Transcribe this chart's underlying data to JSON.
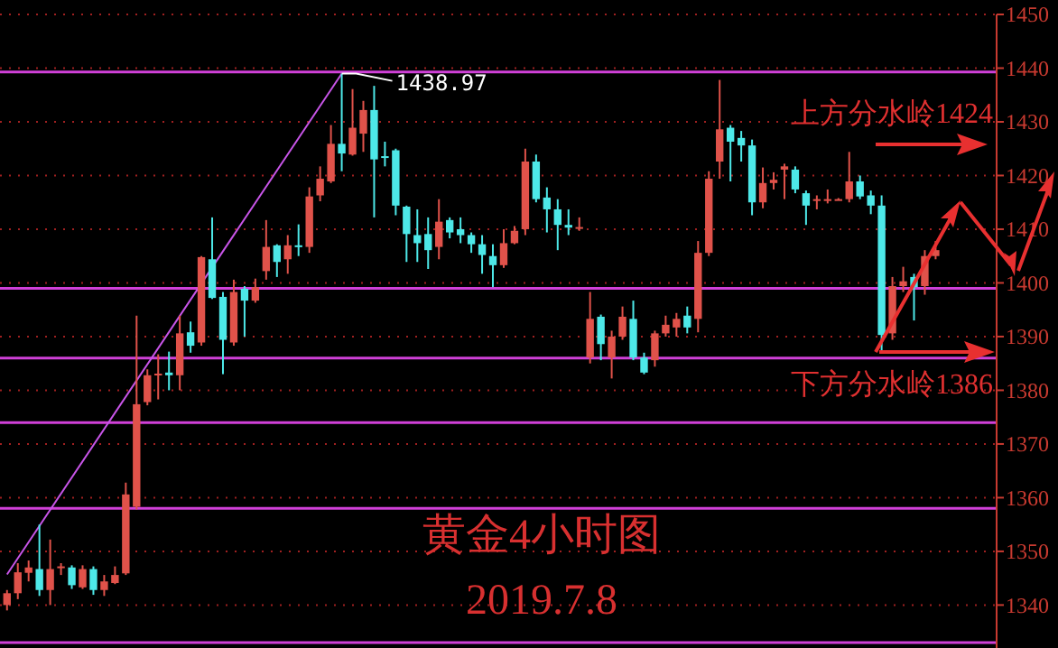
{
  "chart_data": {
    "type": "candlestick",
    "title": "黄金4小时图",
    "subtitle": "2019.7.8",
    "categories": [
      null,
      null,
      null,
      null,
      null,
      null,
      null,
      null,
      null,
      null,
      null,
      null,
      null,
      null,
      null,
      null,
      null,
      null,
      null,
      null,
      null,
      null,
      null,
      null,
      null,
      null,
      null,
      null,
      null,
      null,
      null,
      null,
      null,
      null,
      null,
      null,
      null,
      null,
      null,
      null,
      null,
      null,
      null,
      null,
      null,
      null,
      null,
      null,
      null,
      null,
      null,
      null,
      null,
      null,
      null,
      null,
      null,
      null,
      null,
      null,
      null,
      null,
      null,
      null,
      null,
      null,
      null,
      null,
      null,
      null,
      null,
      null,
      null,
      null,
      null,
      null,
      null,
      null,
      null,
      null,
      null,
      null,
      null,
      null,
      null,
      null,
      null,
      null,
      null,
      null,
      null,
      null
    ],
    "ohlc": [
      [
        1340,
        1342.8,
        1339,
        1342.2
      ],
      [
        1342.2,
        1347.8,
        1341.1,
        1346.1
      ],
      [
        1346,
        1348.3,
        1344.4,
        1347
      ],
      [
        1346.7,
        1355,
        1341.7,
        1342.8
      ],
      [
        1342.8,
        1352.2,
        1340,
        1346.7
      ],
      [
        1346.9,
        1347.8,
        1345.6,
        1347.2
      ],
      [
        1347,
        1347.4,
        1343,
        1343.7
      ],
      [
        1343.3,
        1347.4,
        1343,
        1346.7
      ],
      [
        1346.7,
        1347.2,
        1341.9,
        1342.8
      ],
      [
        1342.8,
        1345.6,
        1341.7,
        1344.4
      ],
      [
        1344.1,
        1347.2,
        1343.9,
        1345.6
      ],
      [
        1345.9,
        1362.8,
        1345.6,
        1360.6
      ],
      [
        1358.3,
        1393.9,
        1357.8,
        1377.4
      ],
      [
        1377.8,
        1383.9,
        1377.2,
        1382.8
      ],
      [
        1382.8,
        1386.7,
        1378.3,
        1383.1
      ],
      [
        1383.3,
        1387.2,
        1380,
        1382.8
      ],
      [
        1382.8,
        1393.9,
        1380,
        1390.6
      ],
      [
        1390.8,
        1392.8,
        1387,
        1388.3
      ],
      [
        1388.9,
        1405,
        1388.3,
        1404.8
      ],
      [
        1404.4,
        1412.2,
        1397,
        1397.2
      ],
      [
        1397.4,
        1398.3,
        1383,
        1389.4
      ],
      [
        1388.9,
        1400.6,
        1388.3,
        1398.3
      ],
      [
        1398.9,
        1399.4,
        1390,
        1396.7
      ],
      [
        1396.7,
        1400.8,
        1396.3,
        1399.2
      ],
      [
        1402.2,
        1411.7,
        1400.6,
        1406.7
      ],
      [
        1407,
        1407.2,
        1401.1,
        1403.9
      ],
      [
        1404.4,
        1408.9,
        1401.7,
        1407
      ],
      [
        1407,
        1410.9,
        1405,
        1406.7
      ],
      [
        1406.7,
        1417.8,
        1405.6,
        1416.1
      ],
      [
        1416.3,
        1421.7,
        1415.2,
        1419.4
      ],
      [
        1418.9,
        1429.4,
        1418.6,
        1425.9
      ],
      [
        1425.9,
        1438.97,
        1420.8,
        1424.1
      ],
      [
        1423.9,
        1436.1,
        1423.7,
        1428.9
      ],
      [
        1427.8,
        1433.9,
        1424.4,
        1432.2
      ],
      [
        1432.2,
        1436.7,
        1412.2,
        1423
      ],
      [
        1423.6,
        1426.3,
        1421.7,
        1423.3
      ],
      [
        1424.7,
        1425,
        1412.6,
        1414.4
      ],
      [
        1414.2,
        1414.4,
        1403.9,
        1409.1
      ],
      [
        1408.9,
        1413.7,
        1403.9,
        1407.4
      ],
      [
        1409.1,
        1412.2,
        1402.6,
        1406.1
      ],
      [
        1406.7,
        1415.6,
        1404.4,
        1411.4
      ],
      [
        1411.7,
        1412.2,
        1408.3,
        1409.4
      ],
      [
        1410,
        1412.2,
        1407.4,
        1408.9
      ],
      [
        1408.9,
        1409.4,
        1405.6,
        1407.2
      ],
      [
        1407.2,
        1408.9,
        1401.7,
        1405.2
      ],
      [
        1405,
        1407.2,
        1399.2,
        1403.3
      ],
      [
        1403.3,
        1410,
        1402.8,
        1407.4
      ],
      [
        1407.4,
        1410.6,
        1407.2,
        1409.7
      ],
      [
        1410,
        1425,
        1408.9,
        1422.6
      ],
      [
        1422.6,
        1423.9,
        1415,
        1415.6
      ],
      [
        1415.9,
        1417.8,
        1409.4,
        1413.7
      ],
      [
        1413.7,
        1415.6,
        1406.1,
        1410.8
      ],
      [
        1410.8,
        1413.7,
        1408.9,
        1410.3
      ],
      [
        1410.3,
        1412.2,
        1409.7,
        1410.4
      ],
      [
        1386.1,
        1398.3,
        1385,
        1393.3
      ],
      [
        1393.7,
        1394.1,
        1385.6,
        1388.6
      ],
      [
        1386.1,
        1391.1,
        1382.2,
        1390
      ],
      [
        1390,
        1395.6,
        1389.4,
        1393.7
      ],
      [
        1393.3,
        1396.7,
        1385.6,
        1386.1
      ],
      [
        1386.1,
        1387,
        1383,
        1383.3
      ],
      [
        1385.6,
        1391.1,
        1384.4,
        1390.6
      ],
      [
        1390.6,
        1393.9,
        1390,
        1392.2
      ],
      [
        1391.7,
        1394.4,
        1390,
        1393.3
      ],
      [
        1393.9,
        1395.6,
        1390.6,
        1391.7
      ],
      [
        1393.3,
        1407.8,
        1390.8,
        1405.6
      ],
      [
        1405.6,
        1420.8,
        1405,
        1419.4
      ],
      [
        1422.6,
        1437.8,
        1419.4,
        1428.6
      ],
      [
        1428.9,
        1429.4,
        1418.9,
        1426.3
      ],
      [
        1427,
        1428.3,
        1422.6,
        1425.6
      ],
      [
        1425.6,
        1426.7,
        1412.6,
        1415
      ],
      [
        1415,
        1421.5,
        1413.9,
        1418.6
      ],
      [
        1418.6,
        1420.6,
        1417.4,
        1419.2
      ],
      [
        1421.1,
        1422.2,
        1415.6,
        1421.7
      ],
      [
        1421.1,
        1421.7,
        1416.7,
        1417.4
      ],
      [
        1416.7,
        1417.2,
        1410.8,
        1414.4
      ],
      [
        1415.4,
        1416.3,
        1413.7,
        1415.6
      ],
      [
        1415.6,
        1417.4,
        1414.8,
        1415.6
      ],
      [
        1415.6,
        1415.8,
        1415.4,
        1415.6
      ],
      [
        1415.6,
        1424.4,
        1415,
        1418.9
      ],
      [
        1418.9,
        1420,
        1415.6,
        1416.1
      ],
      [
        1416.3,
        1417.2,
        1412.8,
        1414.4
      ],
      [
        1414.4,
        1416.3,
        1387.2,
        1390.3
      ],
      [
        1390.6,
        1401.1,
        1389.4,
        1399.4
      ],
      [
        1399.4,
        1403,
        1398.3,
        1400.3
      ],
      [
        1401.1,
        1401.7,
        1393,
        1399.2
      ],
      [
        1399.4,
        1406.1,
        1397.8,
        1405
      ],
      [
        1405,
        1407.8,
        1404.4,
        1406.1
      ],
      null,
      null,
      null,
      null,
      null
    ],
    "colors": [
      "#e0524a",
      "#e0524a",
      "#e0524a",
      "#4de8e8",
      "#e0524a",
      "#e0524a",
      "#4de8e8",
      "#e0524a",
      "#4de8e8",
      "#e0524a",
      "#e0524a",
      "#e0524a",
      "#e0524a",
      "#e0524a",
      "#e0524a",
      "#4de8e8",
      "#e0524a",
      "#4de8e8",
      "#e0524a",
      "#4de8e8",
      "#4de8e8",
      "#e0524a",
      "#4de8e8",
      "#e0524a",
      "#e0524a",
      "#4de8e8",
      "#e0524a",
      "#4de8e8",
      "#e0524a",
      "#e0524a",
      "#e0524a",
      "#4de8e8",
      "#e0524a",
      "#e0524a",
      "#4de8e8",
      "#4de8e8",
      "#4de8e8",
      "#4de8e8",
      "#4de8e8",
      "#4de8e8",
      "#e0524a",
      "#4de8e8",
      "#4de8e8",
      "#4de8e8",
      "#4de8e8",
      "#4de8e8",
      "#e0524a",
      "#e0524a",
      "#e0524a",
      "#4de8e8",
      "#4de8e8",
      "#4de8e8",
      "#4de8e8",
      "#e0524a",
      "#e0524a",
      "#4de8e8",
      "#e0524a",
      "#e0524a",
      "#4de8e8",
      "#4de8e8",
      "#e0524a",
      "#e0524a",
      "#e0524a",
      "#4de8e8",
      "#e0524a",
      "#e0524a",
      "#e0524a",
      "#4de8e8",
      "#4de8e8",
      "#4de8e8",
      "#e0524a",
      "#e0524a",
      "#e0524a",
      "#4de8e8",
      "#4de8e8",
      "#e0524a",
      "#e0524a",
      "#e0524a",
      "#e0524a",
      "#4de8e8",
      "#4de8e8",
      "#4de8e8",
      "#e0524a",
      "#e0524a",
      "#4de8e8",
      "#e0524a",
      "#e0524a",
      null,
      null,
      null,
      null,
      null
    ],
    "series": [
      {
        "type": "line",
        "color": "#c855e8",
        "values": [
          1345.7,
          null,
          null,
          null,
          null,
          null,
          null,
          null,
          null,
          null,
          null,
          null,
          null,
          null,
          null,
          null,
          null,
          null,
          null,
          null,
          null,
          null,
          null,
          null,
          null,
          null,
          null,
          null,
          null,
          null,
          null,
          1439,
          null,
          null,
          null,
          null,
          null,
          null,
          null,
          null,
          null,
          null,
          null,
          null,
          null,
          null,
          null,
          null,
          null,
          null,
          null,
          null,
          null,
          null,
          null,
          null,
          null,
          null,
          null,
          null,
          null,
          null,
          null,
          null,
          null,
          null,
          null,
          null,
          null,
          null,
          null,
          null,
          null,
          null,
          null,
          null,
          null,
          null,
          null,
          null,
          null,
          null,
          null,
          null,
          null,
          null,
          null,
          null,
          null,
          null,
          null,
          null
        ]
      }
    ],
    "ylim": [
      1332,
      1450
    ],
    "yticks": [
      1340,
      1350,
      1360,
      1370,
      1380,
      1390,
      1400,
      1410,
      1420,
      1430,
      1440,
      1450
    ],
    "grid": "y",
    "tick_labels": "y",
    "ref_lines": [
      {
        "axis": "y",
        "value": 1439.3,
        "color": "#d040d8"
      },
      {
        "axis": "y",
        "value": 1399,
        "color": "#d040d8"
      },
      {
        "axis": "y",
        "value": 1386,
        "color": "#d040d8"
      },
      {
        "axis": "y",
        "value": 1374,
        "color": "#d040d8"
      },
      {
        "axis": "y",
        "value": 1358,
        "color": "#d040d8"
      },
      {
        "axis": "y",
        "value": 1333,
        "color": "#d040d8"
      }
    ],
    "annotations": [
      {
        "text": "1438.97",
        "y": 1438.97
      },
      "上方分水岭1424",
      "下方分水岭1386"
    ]
  }
}
